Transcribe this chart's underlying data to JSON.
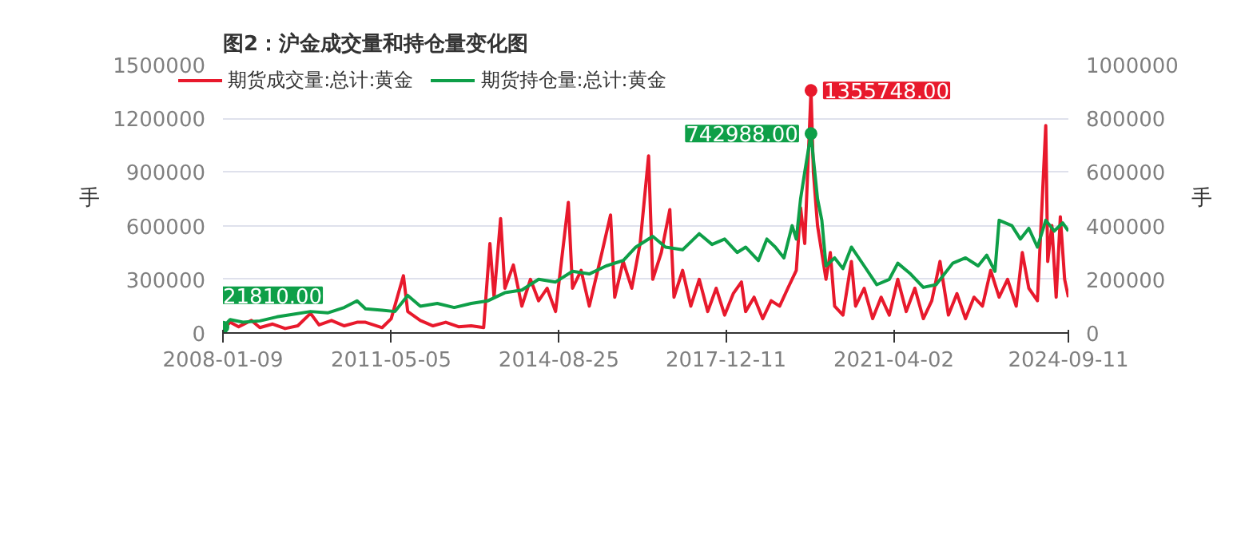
{
  "chart_data": {
    "type": "line",
    "title": "图2：沪金成交量和持仓量变化图",
    "ylabel": "手",
    "y2label": "手",
    "xlim": [
      "2008-01-09",
      "2024-09-11"
    ],
    "xticks": [
      "2008-01-09",
      "2011-05-05",
      "2014-08-25",
      "2017-12-11",
      "2021-04-02",
      "2024-09-11"
    ],
    "ylim": [
      0,
      1500000
    ],
    "yticks": [
      0,
      300000,
      600000,
      900000,
      1200000,
      1500000
    ],
    "y2lim": [
      0,
      1000000
    ],
    "y2ticks": [
      0,
      200000,
      400000,
      600000,
      800000,
      1000000
    ],
    "grid": "y",
    "legend": "top left",
    "marker": "none",
    "line_style": "solid",
    "series": [
      {
        "name": "期货成交量:总计:黄金",
        "color": "#e8192c",
        "x": [
          "2008-01-09",
          "2008-03-01",
          "2008-05-01",
          "2008-08-01",
          "2008-10-01",
          "2009-01-01",
          "2009-04-01",
          "2009-07-01",
          "2009-10-01",
          "2009-12-01",
          "2010-03-01",
          "2010-06-01",
          "2010-09-01",
          "2010-11-01",
          "2011-03-01",
          "2011-05-05",
          "2011-08-01",
          "2011-09-01",
          "2011-12-01",
          "2012-03-01",
          "2012-06-01",
          "2012-09-01",
          "2012-12-01",
          "2013-03-01",
          "2013-04-15",
          "2013-05-15",
          "2013-07-01",
          "2013-08-01",
          "2013-10-01",
          "2013-12-01",
          "2014-02-01",
          "2014-04-01",
          "2014-06-01",
          "2014-08-01",
          "2014-11-01",
          "2014-12-01",
          "2015-02-01",
          "2015-04-01",
          "2015-07-01",
          "2015-09-01",
          "2015-10-01",
          "2015-12-01",
          "2016-02-01",
          "2016-04-01",
          "2016-06-01",
          "2016-07-01",
          "2016-09-01",
          "2016-11-01",
          "2016-12-01",
          "2017-02-01",
          "2017-04-01",
          "2017-06-01",
          "2017-08-01",
          "2017-10-01",
          "2017-12-01",
          "2018-02-01",
          "2018-04-01",
          "2018-05-01",
          "2018-07-01",
          "2018-09-01",
          "2018-11-01",
          "2019-01-01",
          "2019-03-01",
          "2019-05-01",
          "2019-06-01",
          "2019-07-01",
          "2019-08-15",
          "2019-09-01",
          "2019-10-01",
          "2019-12-01",
          "2020-01-01",
          "2020-02-01",
          "2020-04-01",
          "2020-06-01",
          "2020-07-01",
          "2020-09-01",
          "2020-11-01",
          "2021-01-01",
          "2021-03-01",
          "2021-05-01",
          "2021-07-01",
          "2021-09-01",
          "2021-11-01",
          "2022-01-01",
          "2022-03-01",
          "2022-05-01",
          "2022-07-01",
          "2022-09-01",
          "2022-11-01",
          "2023-01-01",
          "2023-03-01",
          "2023-05-01",
          "2023-07-01",
          "2023-09-01",
          "2023-10-15",
          "2023-12-01",
          "2024-02-01",
          "2024-04-01",
          "2024-04-15",
          "2024-05-15",
          "2024-06-15",
          "2024-07-15",
          "2024-08-15",
          "2024-09-11"
        ],
        "values": [
          20000,
          60000,
          35000,
          70000,
          30000,
          50000,
          25000,
          40000,
          110000,
          45000,
          70000,
          40000,
          60000,
          60000,
          30000,
          80000,
          320000,
          120000,
          70000,
          40000,
          60000,
          35000,
          40000,
          30000,
          500000,
          200000,
          640000,
          250000,
          380000,
          150000,
          300000,
          180000,
          250000,
          120000,
          730000,
          250000,
          350000,
          150000,
          450000,
          660000,
          200000,
          400000,
          250000,
          500000,
          990000,
          300000,
          450000,
          690000,
          200000,
          350000,
          150000,
          300000,
          120000,
          250000,
          100000,
          220000,
          285000,
          120000,
          200000,
          80000,
          180000,
          150000,
          250000,
          350000,
          700000,
          500000,
          1355748,
          900000,
          600000,
          300000,
          450000,
          150000,
          100000,
          400000,
          150000,
          250000,
          80000,
          200000,
          100000,
          300000,
          120000,
          250000,
          80000,
          180000,
          400000,
          100000,
          220000,
          80000,
          200000,
          150000,
          350000,
          200000,
          300000,
          150000,
          450000,
          250000,
          180000,
          1160000,
          400000,
          600000,
          200000,
          650000,
          300000,
          200000
        ]
      },
      {
        "name": "期货持仓量:总计:黄金",
        "color": "#0e9f48",
        "axis": "y2",
        "x": [
          "2008-01-09",
          "2008-03-01",
          "2008-06-01",
          "2008-10-01",
          "2009-02-01",
          "2009-06-01",
          "2009-10-01",
          "2010-02-01",
          "2010-06-01",
          "2010-09-01",
          "2010-11-01",
          "2011-03-01",
          "2011-06-01",
          "2011-09-01",
          "2011-12-01",
          "2012-04-01",
          "2012-08-01",
          "2012-12-01",
          "2013-04-01",
          "2013-08-01",
          "2013-12-01",
          "2014-04-01",
          "2014-08-01",
          "2014-12-01",
          "2015-04-01",
          "2015-08-01",
          "2015-12-01",
          "2016-03-01",
          "2016-07-01",
          "2016-10-01",
          "2017-02-01",
          "2017-06-01",
          "2017-09-01",
          "2017-12-01",
          "2018-03-01",
          "2018-05-01",
          "2018-08-01",
          "2018-10-01",
          "2018-12-01",
          "2019-02-01",
          "2019-04-01",
          "2019-05-01",
          "2019-06-01",
          "2019-07-01",
          "2019-08-15",
          "2019-09-01",
          "2019-10-01",
          "2019-11-01",
          "2019-12-01",
          "2020-02-01",
          "2020-04-01",
          "2020-06-01",
          "2020-09-01",
          "2020-12-01",
          "2021-03-01",
          "2021-05-01",
          "2021-08-01",
          "2021-11-01",
          "2022-02-01",
          "2022-06-01",
          "2022-09-01",
          "2022-12-01",
          "2023-02-01",
          "2023-04-01",
          "2023-05-01",
          "2023-08-01",
          "2023-10-01",
          "2023-12-01",
          "2024-02-01",
          "2024-04-01",
          "2024-06-01",
          "2024-08-01",
          "2024-09-11"
        ],
        "values": [
          21810,
          50000,
          40000,
          45000,
          60000,
          70000,
          80000,
          75000,
          95000,
          120000,
          90000,
          85000,
          80000,
          140000,
          100000,
          110000,
          95000,
          110000,
          120000,
          150000,
          160000,
          200000,
          190000,
          230000,
          220000,
          250000,
          270000,
          320000,
          360000,
          320000,
          310000,
          370000,
          330000,
          350000,
          300000,
          320000,
          270000,
          350000,
          320000,
          280000,
          400000,
          350000,
          500000,
          600000,
          742988,
          650000,
          500000,
          420000,
          250000,
          280000,
          240000,
          320000,
          250000,
          180000,
          200000,
          260000,
          220000,
          170000,
          180000,
          260000,
          280000,
          250000,
          290000,
          230000,
          420000,
          400000,
          350000,
          390000,
          320000,
          420000,
          380000,
          410000,
          380000
        ]
      }
    ],
    "annotations": [
      {
        "text": "1355748.00",
        "x": "2019-08-15",
        "y": 1355748
      },
      {
        "text": "742988.00",
        "x": "2019-08-15",
        "y": 742988
      },
      {
        "text": "21810.00",
        "x": "2008-01-09",
        "y": 21810
      }
    ]
  }
}
